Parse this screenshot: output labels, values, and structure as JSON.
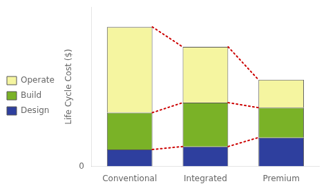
{
  "chart_data": {
    "type": "bar",
    "categories": [
      "Conventional",
      "Integrated",
      "Premium"
    ],
    "series": [
      {
        "name": "Design",
        "color": "#2e3f9e",
        "values": [
          0.85,
          1.0,
          1.45
        ]
      },
      {
        "name": "Build",
        "color": "#7ab227",
        "values": [
          1.85,
          2.2,
          1.5
        ]
      },
      {
        "name": "Operate",
        "color": "#f5f5a0",
        "values": [
          4.3,
          2.8,
          1.4
        ]
      }
    ],
    "ylabel": "Life Cycle Cost ($)",
    "ylim": [
      0,
      8.0
    ],
    "yticks": [
      0
    ],
    "stacked": true,
    "grid": false,
    "legend": "left"
  }
}
